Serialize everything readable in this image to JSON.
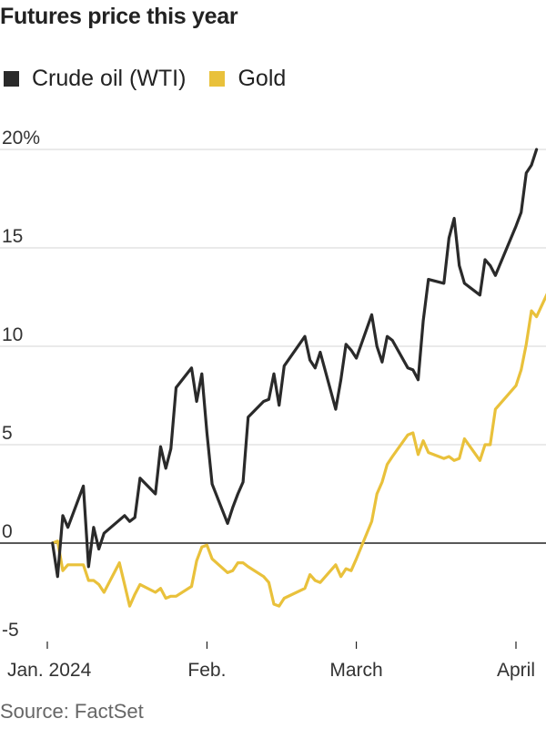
{
  "title": "Futures price this year",
  "source": "Source: FactSet",
  "legend": [
    {
      "label": "Crude oil (WTI)",
      "color": "#2a2a2a"
    },
    {
      "label": "Gold",
      "color": "#e9c13b"
    }
  ],
  "chart_data": {
    "type": "line",
    "title": "Futures price this year",
    "xlabel": "",
    "ylabel": "",
    "ylim": [
      -5,
      20
    ],
    "y_ticks": [
      "-5",
      "0",
      "5",
      "10",
      "15",
      "20%"
    ],
    "y_tick_values": [
      -5,
      0,
      5,
      10,
      15,
      20
    ],
    "x_ticks": [
      "Jan. 2024",
      "Feb.",
      "March",
      "April"
    ],
    "x_tick_dates": [
      "2024-01-01",
      "2024-02-01",
      "2024-03-01",
      "2024-04-01"
    ],
    "grid": true,
    "legend_position": "top-left",
    "series": [
      {
        "name": "Crude oil (WTI)",
        "color": "#2a2a2a",
        "points": [
          [
            "2024-01-02",
            0.0
          ],
          [
            "2024-01-03",
            -1.7
          ],
          [
            "2024-01-04",
            1.4
          ],
          [
            "2024-01-05",
            0.8
          ],
          [
            "2024-01-08",
            2.9
          ],
          [
            "2024-01-09",
            -1.2
          ],
          [
            "2024-01-10",
            0.8
          ],
          [
            "2024-01-11",
            -0.3
          ],
          [
            "2024-01-12",
            0.5
          ],
          [
            "2024-01-16",
            1.4
          ],
          [
            "2024-01-17",
            1.1
          ],
          [
            "2024-01-18",
            1.3
          ],
          [
            "2024-01-19",
            3.3
          ],
          [
            "2024-01-22",
            2.5
          ],
          [
            "2024-01-23",
            4.9
          ],
          [
            "2024-01-24",
            3.8
          ],
          [
            "2024-01-25",
            4.8
          ],
          [
            "2024-01-26",
            7.9
          ],
          [
            "2024-01-29",
            8.9
          ],
          [
            "2024-01-30",
            7.2
          ],
          [
            "2024-01-31",
            8.6
          ],
          [
            "2024-02-01",
            5.6
          ],
          [
            "2024-02-02",
            3.0
          ],
          [
            "2024-02-05",
            1.0
          ],
          [
            "2024-02-06",
            1.8
          ],
          [
            "2024-02-07",
            2.5
          ],
          [
            "2024-02-08",
            3.1
          ],
          [
            "2024-02-09",
            6.4
          ],
          [
            "2024-02-12",
            7.2
          ],
          [
            "2024-02-13",
            7.3
          ],
          [
            "2024-02-14",
            8.6
          ],
          [
            "2024-02-15",
            7.0
          ],
          [
            "2024-02-16",
            9.0
          ],
          [
            "2024-02-20",
            10.5
          ],
          [
            "2024-02-21",
            9.3
          ],
          [
            "2024-02-22",
            8.9
          ],
          [
            "2024-02-23",
            9.7
          ],
          [
            "2024-02-26",
            6.8
          ],
          [
            "2024-02-27",
            8.3
          ],
          [
            "2024-02-28",
            10.1
          ],
          [
            "2024-02-29",
            9.8
          ],
          [
            "2024-03-01",
            9.4
          ],
          [
            "2024-03-04",
            11.6
          ],
          [
            "2024-03-05",
            10.0
          ],
          [
            "2024-03-06",
            9.2
          ],
          [
            "2024-03-07",
            10.5
          ],
          [
            "2024-03-08",
            10.3
          ],
          [
            "2024-03-11",
            8.9
          ],
          [
            "2024-03-12",
            8.8
          ],
          [
            "2024-03-13",
            8.3
          ],
          [
            "2024-03-14",
            11.3
          ],
          [
            "2024-03-15",
            13.4
          ],
          [
            "2024-03-18",
            13.2
          ],
          [
            "2024-03-19",
            15.5
          ],
          [
            "2024-03-20",
            16.5
          ],
          [
            "2024-03-21",
            14.1
          ],
          [
            "2024-03-22",
            13.2
          ],
          [
            "2024-03-25",
            12.6
          ],
          [
            "2024-03-26",
            14.4
          ],
          [
            "2024-03-27",
            14.1
          ],
          [
            "2024-03-28",
            13.6
          ],
          [
            "2024-04-01",
            16.1
          ],
          [
            "2024-04-02",
            16.8
          ],
          [
            "2024-04-03",
            18.8
          ],
          [
            "2024-04-04",
            19.2
          ],
          [
            "2024-04-05",
            20.0
          ]
        ]
      },
      {
        "name": "Gold",
        "color": "#e9c13b",
        "points": [
          [
            "2024-01-02",
            0.0
          ],
          [
            "2024-01-03",
            0.1
          ],
          [
            "2024-01-04",
            -1.4
          ],
          [
            "2024-01-05",
            -1.1
          ],
          [
            "2024-01-08",
            -1.1
          ],
          [
            "2024-01-09",
            -1.9
          ],
          [
            "2024-01-10",
            -1.9
          ],
          [
            "2024-01-11",
            -2.1
          ],
          [
            "2024-01-12",
            -2.5
          ],
          [
            "2024-01-15",
            -1.0
          ],
          [
            "2024-01-16",
            -2.1
          ],
          [
            "2024-01-17",
            -3.2
          ],
          [
            "2024-01-18",
            -2.6
          ],
          [
            "2024-01-19",
            -2.1
          ],
          [
            "2024-01-22",
            -2.5
          ],
          [
            "2024-01-23",
            -2.3
          ],
          [
            "2024-01-24",
            -2.8
          ],
          [
            "2024-01-25",
            -2.7
          ],
          [
            "2024-01-26",
            -2.7
          ],
          [
            "2024-01-29",
            -2.2
          ],
          [
            "2024-01-30",
            -0.9
          ],
          [
            "2024-01-31",
            -0.2
          ],
          [
            "2024-02-01",
            -0.1
          ],
          [
            "2024-02-02",
            -0.8
          ],
          [
            "2024-02-05",
            -1.5
          ],
          [
            "2024-02-06",
            -1.4
          ],
          [
            "2024-02-07",
            -1.0
          ],
          [
            "2024-02-08",
            -1.0
          ],
          [
            "2024-02-09",
            -1.2
          ],
          [
            "2024-02-12",
            -1.7
          ],
          [
            "2024-02-13",
            -2.0
          ],
          [
            "2024-02-14",
            -3.1
          ],
          [
            "2024-02-15",
            -3.2
          ],
          [
            "2024-02-16",
            -2.8
          ],
          [
            "2024-02-20",
            -2.3
          ],
          [
            "2024-02-21",
            -1.6
          ],
          [
            "2024-02-22",
            -1.9
          ],
          [
            "2024-02-23",
            -2.0
          ],
          [
            "2024-02-26",
            -1.1
          ],
          [
            "2024-02-27",
            -1.7
          ],
          [
            "2024-02-28",
            -1.3
          ],
          [
            "2024-02-29",
            -1.4
          ],
          [
            "2024-03-01",
            -0.8
          ],
          [
            "2024-03-04",
            1.1
          ],
          [
            "2024-03-05",
            2.5
          ],
          [
            "2024-03-06",
            3.1
          ],
          [
            "2024-03-07",
            4.0
          ],
          [
            "2024-03-08",
            4.4
          ],
          [
            "2024-03-11",
            5.5
          ],
          [
            "2024-03-12",
            5.6
          ],
          [
            "2024-03-13",
            4.5
          ],
          [
            "2024-03-14",
            5.2
          ],
          [
            "2024-03-15",
            4.6
          ],
          [
            "2024-03-18",
            4.3
          ],
          [
            "2024-03-19",
            4.4
          ],
          [
            "2024-03-20",
            4.2
          ],
          [
            "2024-03-21",
            4.3
          ],
          [
            "2024-03-22",
            5.3
          ],
          [
            "2024-03-25",
            4.2
          ],
          [
            "2024-03-26",
            5.0
          ],
          [
            "2024-03-27",
            5.0
          ],
          [
            "2024-03-28",
            6.8
          ],
          [
            "2024-04-01",
            8.0
          ],
          [
            "2024-04-02",
            8.8
          ],
          [
            "2024-04-03",
            10.1
          ],
          [
            "2024-04-04",
            11.8
          ],
          [
            "2024-04-05",
            11.5
          ],
          [
            "2024-04-08",
            13.2
          ]
        ]
      }
    ]
  }
}
